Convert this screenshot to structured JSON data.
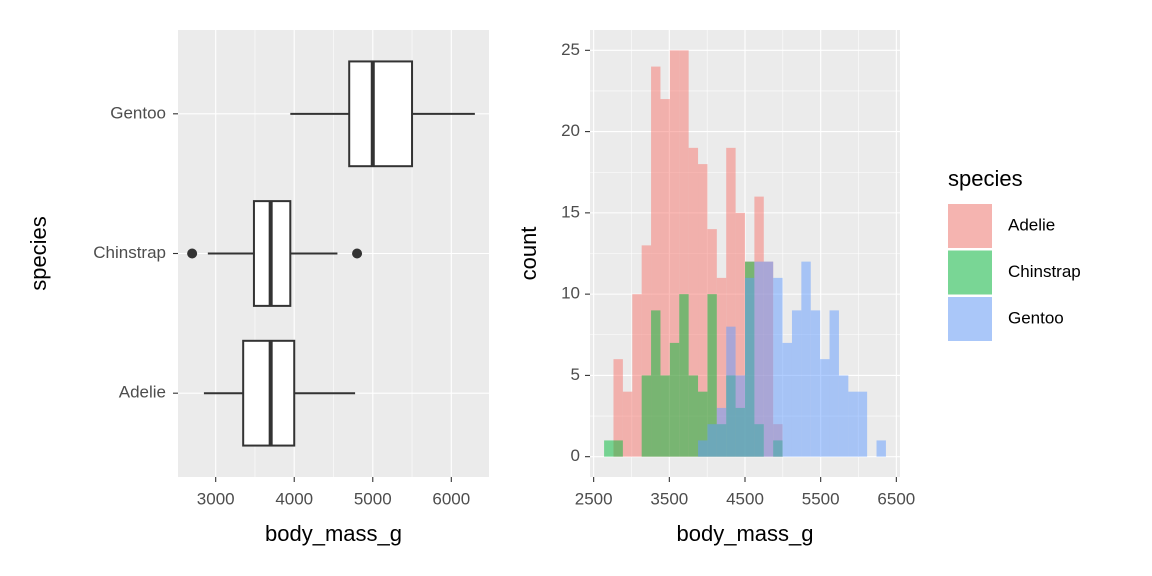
{
  "chart_data": [
    {
      "type": "boxplot",
      "categories": [
        "Adelie",
        "Chinstrap",
        "Gentoo"
      ],
      "boxes": [
        {
          "whisker_low": 2850,
          "q1": 3350,
          "median": 3700,
          "q3": 4000,
          "whisker_high": 4775,
          "outliers": []
        },
        {
          "whisker_low": 2900,
          "q1": 3487,
          "median": 3700,
          "q3": 3950,
          "whisker_high": 4550,
          "outliers": [
            2700,
            4800
          ]
        },
        {
          "whisker_low": 3950,
          "q1": 4700,
          "median": 5000,
          "q3": 5500,
          "whisker_high": 6300,
          "outliers": []
        }
      ],
      "xlim": [
        2520,
        6480
      ],
      "xticks": [
        3000,
        4000,
        5000,
        6000
      ],
      "x_label": "body_mass_g",
      "y_label": "species",
      "grid": true
    },
    {
      "type": "histogram",
      "bins": [
        2637.9,
        2762.1,
        2886.2,
        3010.3,
        3134.5,
        3258.6,
        3382.8,
        3506.9,
        3631.0,
        3755.2,
        3879.3,
        4003.4,
        4127.6,
        4251.7,
        4375.9,
        4500.0,
        4624.1,
        4748.3,
        4872.4,
        4996.6,
        5120.7,
        5244.8,
        5369.0,
        5493.1,
        5617.2,
        5741.4,
        5865.5,
        5989.7,
        6113.8,
        6237.9,
        6362.1
      ],
      "series": [
        {
          "name": "Adelie",
          "color": "#F8766D",
          "values": [
            0,
            6,
            4,
            10,
            13,
            24,
            22,
            25,
            25,
            19,
            18,
            14,
            11,
            19,
            15,
            12,
            16,
            12,
            2,
            0,
            0,
            0,
            0,
            0,
            0,
            0,
            0,
            0,
            0,
            0
          ]
        },
        {
          "name": "Chinstrap",
          "color": "#00BA38",
          "values": [
            1,
            1,
            0,
            0,
            5,
            9,
            5,
            7,
            10,
            5,
            4,
            10,
            2,
            5,
            3,
            12,
            2,
            0,
            1,
            0,
            0,
            0,
            0,
            0,
            0,
            0,
            0,
            0,
            0,
            0
          ]
        },
        {
          "name": "Gentoo",
          "color": "#619CFF",
          "values": [
            0,
            0,
            0,
            0,
            0,
            0,
            0,
            0,
            0,
            0,
            1,
            2,
            3,
            8,
            5,
            11,
            12,
            12,
            11,
            7,
            9,
            12,
            9,
            6,
            9,
            5,
            4,
            4,
            0,
            1
          ]
        }
      ],
      "alpha": 0.5,
      "xlim": [
        2451.7,
        6548.3
      ],
      "xticks": [
        2500,
        3500,
        4500,
        5500,
        6500
      ],
      "ylim": [
        -1.25,
        26.25
      ],
      "yticks": [
        0,
        5,
        10,
        15,
        20,
        25
      ],
      "x_label": "body_mass_g",
      "y_label": "count",
      "grid": true,
      "legend_title": "species",
      "legend_position": "right"
    }
  ]
}
